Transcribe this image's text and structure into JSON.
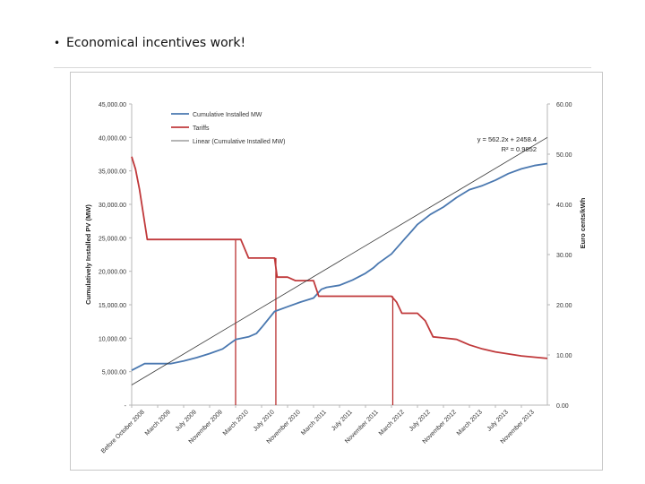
{
  "slide": {
    "bullet_symbol": "•",
    "bullet_text": "Economical incentives work!"
  },
  "colors": {
    "installed": "#4a78b0",
    "tariff": "#c0393b",
    "linear": "#3a3a3a",
    "axis": "#b7b7b7",
    "vline": "#b32020"
  },
  "chart_data": {
    "type": "line",
    "categories": [
      "Before October 2008",
      "March 2009",
      "July 2009",
      "November 2009",
      "March 2010",
      "July 2010",
      "November 2010",
      "March 2011",
      "July 2011",
      "November 2011",
      "March 2012",
      "July 2012",
      "November 2012",
      "March 2013",
      "July 2013",
      "November 2013"
    ],
    "ylabel": "Cumulatively Installed PV (MW)",
    "y2label": "Euro cents/kWh",
    "ylim": [
      0,
      45000
    ],
    "y2lim": [
      0,
      60
    ],
    "y_ticks": [
      "-",
      "5,000.00",
      "10,000.00",
      "15,000.00",
      "20,000.00",
      "25,000.00",
      "30,000.00",
      "35,000.00",
      "40,000.00",
      "45,000.00"
    ],
    "y2_ticks": [
      "0.00",
      "10.00",
      "20.00",
      "30.00",
      "40.00",
      "50.00",
      "60.00"
    ],
    "grid": false,
    "legend_position": "top-left",
    "legend": [
      "Cumulative Installed MW",
      "Tariffs",
      "Linear (Cumulative Installed MW)"
    ],
    "annotation": [
      "y = 562.2x + 2458.4",
      "R² = 0.9852"
    ],
    "series": [
      {
        "name": "Cumulative Installed MW",
        "axis": "left",
        "x": [
          0,
          0.5,
          1,
          1.5,
          2,
          2.5,
          3,
          3.5,
          4,
          4.5,
          4.8,
          5,
          5.5,
          6,
          6.5,
          7,
          7.3,
          7.5,
          8,
          8.5,
          9,
          9.3,
          9.5,
          10,
          10.5,
          10.8,
          11,
          11.5,
          12,
          12.5,
          13,
          13.5,
          14,
          14.5,
          15,
          15.5,
          16
        ],
        "y": [
          5200,
          6200,
          6200,
          6200,
          6600,
          7100,
          7700,
          8400,
          9800,
          10200,
          10700,
          11600,
          14000,
          14700,
          15400,
          16000,
          17300,
          17600,
          17900,
          18700,
          19700,
          20500,
          21200,
          22600,
          24800,
          26100,
          27000,
          28500,
          29600,
          31000,
          32200,
          32800,
          33600,
          34600,
          35300,
          35800,
          36100
        ]
      },
      {
        "name": "Tariffs",
        "axis": "right",
        "x": [
          0,
          0.15,
          0.3,
          0.6,
          1,
          2,
          3,
          4,
          4.2,
          4.5,
          5,
          5.5,
          5.6,
          6,
          6.3,
          6.6,
          7,
          7.2,
          8,
          9,
          10,
          10.2,
          10.4,
          11,
          11.3,
          11.6,
          12,
          12.5,
          13,
          13.5,
          14,
          15,
          16
        ],
        "y": [
          49.5,
          47,
          43,
          33,
          33,
          33,
          33,
          33,
          33,
          29.3,
          29.3,
          29.3,
          25.5,
          25.5,
          24.8,
          24.8,
          24.8,
          21.7,
          21.7,
          21.7,
          21.7,
          20.5,
          18.3,
          18.3,
          16.8,
          13.6,
          13.4,
          13.1,
          12,
          11.2,
          10.6,
          9.8,
          9.3
        ]
      },
      {
        "name": "Linear (Cumulative Installed MW)",
        "axis": "left",
        "x": [
          0,
          16
        ],
        "y": [
          3020,
          40000
        ]
      }
    ],
    "vertical_lines_x": [
      4.0,
      5.55,
      10.05
    ]
  }
}
